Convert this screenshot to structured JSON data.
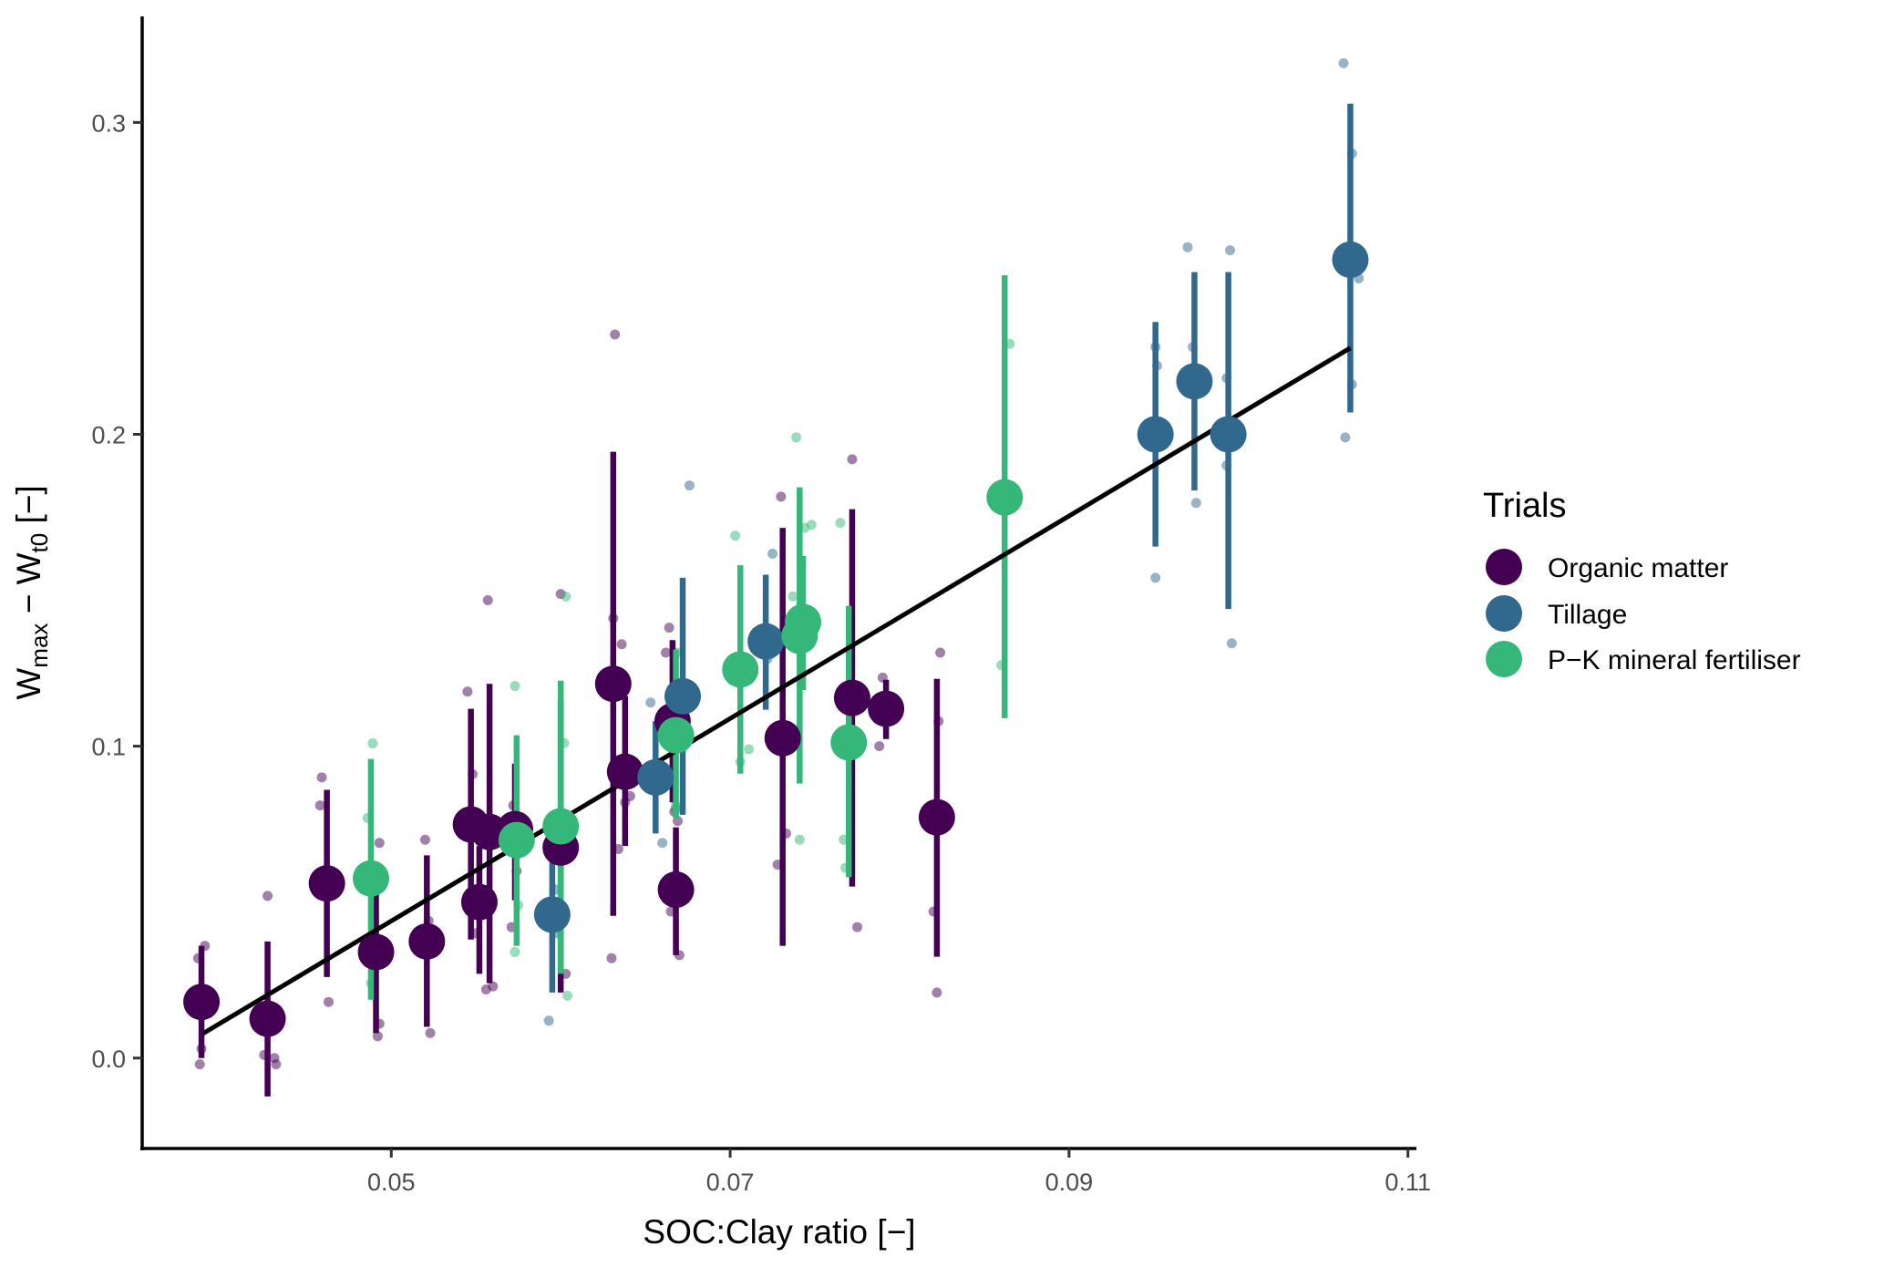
{
  "chart_data": {
    "type": "scatter",
    "title": "",
    "xlabel": "SOC:Clay ratio [−]",
    "ylabel": {
      "main": "W",
      "sub1": "max",
      "mid": " − W",
      "sub2": "t0",
      "end": " [−]"
    },
    "xlim": [
      0.0353,
      0.1105
    ],
    "ylim": [
      -0.029,
      0.334
    ],
    "x_ticks": [
      0.05,
      0.07,
      0.09,
      0.11
    ],
    "x_tick_labels": [
      "0.05",
      "0.07",
      "0.09",
      "0.11"
    ],
    "y_ticks": [
      0.0,
      0.1,
      0.2,
      0.3
    ],
    "y_tick_labels": [
      "0.0",
      "0.1",
      "0.2",
      "0.3"
    ],
    "grid": false,
    "legend": {
      "title": "Trials",
      "placement": "right",
      "entries": [
        {
          "name": "Organic matter",
          "color": "#440154"
        },
        {
          "name": "Tillage",
          "color": "#31688E"
        },
        {
          "name": "P−K mineral fertiliser",
          "color": "#35B779"
        }
      ]
    },
    "regression_line": {
      "x": [
        0.0389,
        0.1066
      ],
      "y": [
        0.0079,
        0.2277
      ],
      "color": "#000000"
    },
    "series": [
      {
        "name": "Organic matter",
        "color": "#440154",
        "means": [
          {
            "x": 0.0388,
            "y": 0.018,
            "lo": 0.0,
            "hi": 0.036
          },
          {
            "x": 0.0427,
            "y": 0.0126,
            "lo": -0.0123,
            "hi": 0.0374
          },
          {
            "x": 0.0462,
            "y": 0.056,
            "lo": 0.026,
            "hi": 0.086
          },
          {
            "x": 0.0491,
            "y": 0.034,
            "lo": 0.008,
            "hi": 0.055
          },
          {
            "x": 0.0521,
            "y": 0.0374,
            "lo": 0.01,
            "hi": 0.065
          },
          {
            "x": 0.0547,
            "y": 0.0749,
            "lo": 0.038,
            "hi": 0.112
          },
          {
            "x": 0.0552,
            "y": 0.05,
            "lo": 0.027,
            "hi": 0.068
          },
          {
            "x": 0.0558,
            "y": 0.0725,
            "lo": 0.024,
            "hi": 0.12
          },
          {
            "x": 0.0573,
            "y": 0.0734,
            "lo": 0.0506,
            "hi": 0.0944
          },
          {
            "x": 0.06,
            "y": 0.0675,
            "lo": 0.021,
            "hi": 0.115
          },
          {
            "x": 0.0631,
            "y": 0.12,
            "lo": 0.0456,
            "hi": 0.1944
          },
          {
            "x": 0.0638,
            "y": 0.0918,
            "lo": 0.068,
            "hi": 0.116
          },
          {
            "x": 0.0666,
            "y": 0.108,
            "lo": 0.082,
            "hi": 0.134
          },
          {
            "x": 0.0668,
            "y": 0.054,
            "lo": 0.033,
            "hi": 0.074
          },
          {
            "x": 0.0731,
            "y": 0.1026,
            "lo": 0.036,
            "hi": 0.17
          },
          {
            "x": 0.0772,
            "y": 0.1155,
            "lo": 0.055,
            "hi": 0.176
          },
          {
            "x": 0.0792,
            "y": 0.112,
            "lo": 0.1023,
            "hi": 0.1213
          },
          {
            "x": 0.0822,
            "y": 0.0772,
            "lo": 0.0325,
            "hi": 0.1216
          }
        ],
        "raw": [
          {
            "x": 0.039,
            "y": 0.036
          },
          {
            "x": 0.0386,
            "y": 0.032
          },
          {
            "x": 0.0388,
            "y": 0.003
          },
          {
            "x": 0.0387,
            "y": -0.002
          },
          {
            "x": 0.0427,
            "y": 0.052
          },
          {
            "x": 0.0425,
            "y": 0.001
          },
          {
            "x": 0.0432,
            "y": -0.002
          },
          {
            "x": 0.0431,
            "y": 0.0
          },
          {
            "x": 0.0459,
            "y": 0.09
          },
          {
            "x": 0.0458,
            "y": 0.081
          },
          {
            "x": 0.0463,
            "y": 0.018
          },
          {
            "x": 0.0493,
            "y": 0.069
          },
          {
            "x": 0.0491,
            "y": 0.055
          },
          {
            "x": 0.0493,
            "y": 0.011
          },
          {
            "x": 0.0492,
            "y": 0.007
          },
          {
            "x": 0.052,
            "y": 0.07
          },
          {
            "x": 0.0522,
            "y": 0.044
          },
          {
            "x": 0.0523,
            "y": 0.008
          },
          {
            "x": 0.0545,
            "y": 0.1175
          },
          {
            "x": 0.0548,
            "y": 0.091
          },
          {
            "x": 0.055,
            "y": 0.04
          },
          {
            "x": 0.0557,
            "y": 0.1468
          },
          {
            "x": 0.0556,
            "y": 0.022
          },
          {
            "x": 0.056,
            "y": 0.023
          },
          {
            "x": 0.0572,
            "y": 0.081
          },
          {
            "x": 0.0574,
            "y": 0.06
          },
          {
            "x": 0.0571,
            "y": 0.042
          },
          {
            "x": 0.06,
            "y": 0.1488
          },
          {
            "x": 0.0598,
            "y": 0.068
          },
          {
            "x": 0.0603,
            "y": 0.027
          },
          {
            "x": 0.0632,
            "y": 0.232
          },
          {
            "x": 0.0631,
            "y": 0.141
          },
          {
            "x": 0.0636,
            "y": 0.1327
          },
          {
            "x": 0.0634,
            "y": 0.067
          },
          {
            "x": 0.063,
            "y": 0.032
          },
          {
            "x": 0.0638,
            "y": 0.082
          },
          {
            "x": 0.0641,
            "y": 0.084
          },
          {
            "x": 0.0664,
            "y": 0.138
          },
          {
            "x": 0.0662,
            "y": 0.13
          },
          {
            "x": 0.0667,
            "y": 0.079
          },
          {
            "x": 0.0669,
            "y": 0.076
          },
          {
            "x": 0.0665,
            "y": 0.047
          },
          {
            "x": 0.067,
            "y": 0.033
          },
          {
            "x": 0.073,
            "y": 0.18
          },
          {
            "x": 0.0728,
            "y": 0.062
          },
          {
            "x": 0.0733,
            "y": 0.072
          },
          {
            "x": 0.0772,
            "y": 0.192
          },
          {
            "x": 0.077,
            "y": 0.101
          },
          {
            "x": 0.0775,
            "y": 0.042
          },
          {
            "x": 0.079,
            "y": 0.122
          },
          {
            "x": 0.0788,
            "y": 0.1
          },
          {
            "x": 0.0824,
            "y": 0.13
          },
          {
            "x": 0.0823,
            "y": 0.108
          },
          {
            "x": 0.082,
            "y": 0.047
          },
          {
            "x": 0.0822,
            "y": 0.021
          }
        ]
      },
      {
        "name": "Tillage",
        "color": "#31688E",
        "means": [
          {
            "x": 0.0595,
            "y": 0.046,
            "lo": 0.021,
            "hi": 0.071
          },
          {
            "x": 0.0656,
            "y": 0.09,
            "lo": 0.072,
            "hi": 0.108
          },
          {
            "x": 0.0672,
            "y": 0.116,
            "lo": 0.078,
            "hi": 0.154
          },
          {
            "x": 0.0721,
            "y": 0.1336,
            "lo": 0.1117,
            "hi": 0.155
          },
          {
            "x": 0.0951,
            "y": 0.2,
            "lo": 0.164,
            "hi": 0.236
          },
          {
            "x": 0.0974,
            "y": 0.217,
            "lo": 0.182,
            "hi": 0.252
          },
          {
            "x": 0.0994,
            "y": 0.2,
            "lo": 0.144,
            "hi": 0.252
          },
          {
            "x": 0.1066,
            "y": 0.256,
            "lo": 0.207,
            "hi": 0.306
          }
        ],
        "raw": [
          {
            "x": 0.0593,
            "y": 0.012
          },
          {
            "x": 0.0597,
            "y": 0.054
          },
          {
            "x": 0.0598,
            "y": 0.04
          },
          {
            "x": 0.0653,
            "y": 0.114
          },
          {
            "x": 0.0657,
            "y": 0.09
          },
          {
            "x": 0.066,
            "y": 0.069
          },
          {
            "x": 0.0676,
            "y": 0.1836
          },
          {
            "x": 0.067,
            "y": 0.11
          },
          {
            "x": 0.0668,
            "y": 0.08
          },
          {
            "x": 0.0725,
            "y": 0.1617
          },
          {
            "x": 0.0718,
            "y": 0.135
          },
          {
            "x": 0.0722,
            "y": 0.128
          },
          {
            "x": 0.0951,
            "y": 0.228
          },
          {
            "x": 0.0952,
            "y": 0.222
          },
          {
            "x": 0.0951,
            "y": 0.154
          },
          {
            "x": 0.097,
            "y": 0.26
          },
          {
            "x": 0.0973,
            "y": 0.228
          },
          {
            "x": 0.0975,
            "y": 0.178
          },
          {
            "x": 0.0995,
            "y": 0.259
          },
          {
            "x": 0.0993,
            "y": 0.218
          },
          {
            "x": 0.0993,
            "y": 0.19
          },
          {
            "x": 0.0996,
            "y": 0.133
          },
          {
            "x": 0.1062,
            "y": 0.319
          },
          {
            "x": 0.1067,
            "y": 0.29
          },
          {
            "x": 0.1071,
            "y": 0.25
          },
          {
            "x": 0.1067,
            "y": 0.216
          },
          {
            "x": 0.1063,
            "y": 0.199
          }
        ]
      },
      {
        "name": "P−K mineral fertiliser",
        "color": "#35B779",
        "means": [
          {
            "x": 0.0488,
            "y": 0.0576,
            "lo": 0.0187,
            "hi": 0.0959
          },
          {
            "x": 0.0574,
            "y": 0.0699,
            "lo": 0.036,
            "hi": 0.1035
          },
          {
            "x": 0.06,
            "y": 0.0743,
            "lo": 0.027,
            "hi": 0.121
          },
          {
            "x": 0.0668,
            "y": 0.1035,
            "lo": 0.077,
            "hi": 0.131
          },
          {
            "x": 0.0706,
            "y": 0.1246,
            "lo": 0.0912,
            "hi": 0.158
          },
          {
            "x": 0.0741,
            "y": 0.1354,
            "lo": 0.088,
            "hi": 0.183
          },
          {
            "x": 0.0743,
            "y": 0.1398,
            "lo": 0.118,
            "hi": 0.161
          },
          {
            "x": 0.077,
            "y": 0.1012,
            "lo": 0.058,
            "hi": 0.145
          },
          {
            "x": 0.0862,
            "y": 0.1798,
            "lo": 0.109,
            "hi": 0.251
          }
        ],
        "raw": [
          {
            "x": 0.0489,
            "y": 0.1009
          },
          {
            "x": 0.0486,
            "y": 0.077
          },
          {
            "x": 0.0488,
            "y": 0.024
          },
          {
            "x": 0.0573,
            "y": 0.1193
          },
          {
            "x": 0.0575,
            "y": 0.049
          },
          {
            "x": 0.0573,
            "y": 0.034
          },
          {
            "x": 0.0603,
            "y": 0.148
          },
          {
            "x": 0.0602,
            "y": 0.101
          },
          {
            "x": 0.0604,
            "y": 0.02
          },
          {
            "x": 0.0669,
            "y": 0.13
          },
          {
            "x": 0.067,
            "y": 0.11
          },
          {
            "x": 0.0668,
            "y": 0.081
          },
          {
            "x": 0.0703,
            "y": 0.1675
          },
          {
            "x": 0.0711,
            "y": 0.099
          },
          {
            "x": 0.0706,
            "y": 0.095
          },
          {
            "x": 0.0739,
            "y": 0.199
          },
          {
            "x": 0.0744,
            "y": 0.17
          },
          {
            "x": 0.0737,
            "y": 0.148
          },
          {
            "x": 0.0748,
            "y": 0.171
          },
          {
            "x": 0.0741,
            "y": 0.07
          },
          {
            "x": 0.0765,
            "y": 0.1716
          },
          {
            "x": 0.0767,
            "y": 0.07
          },
          {
            "x": 0.0768,
            "y": 0.061
          },
          {
            "x": 0.0865,
            "y": 0.229
          },
          {
            "x": 0.086,
            "y": 0.126
          }
        ]
      }
    ]
  }
}
